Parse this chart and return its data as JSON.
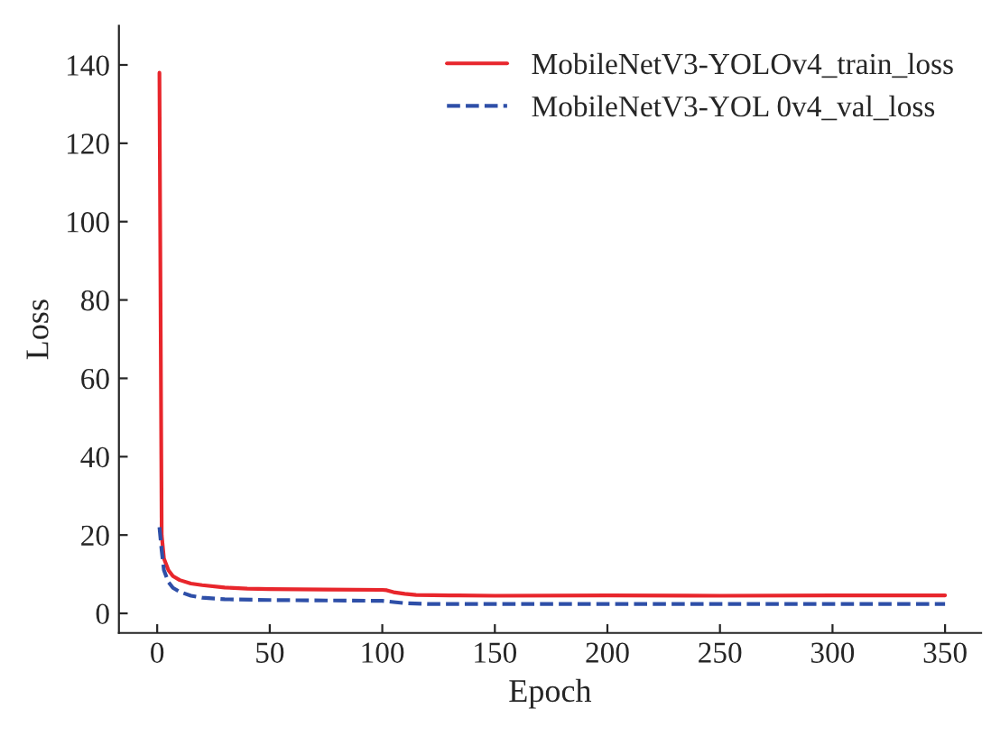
{
  "chart_data": {
    "type": "line",
    "xlabel": "Epoch",
    "ylabel": "Loss",
    "xlim": [
      -17,
      366
    ],
    "ylim": [
      -5,
      150
    ],
    "xticks": [
      0,
      50,
      100,
      150,
      200,
      250,
      300,
      350
    ],
    "yticks": [
      0,
      20,
      40,
      60,
      80,
      100,
      120,
      140
    ],
    "grid": false,
    "legend": "top right",
    "series": [
      {
        "name": "MobileNetV3-YOLOv4_train_loss",
        "color": "#e8262c",
        "line_style": "solid",
        "x": [
          1,
          2,
          3,
          5,
          7,
          10,
          15,
          20,
          30,
          40,
          50,
          75,
          100,
          102,
          105,
          110,
          115,
          130,
          150,
          200,
          250,
          300,
          350
        ],
        "values": [
          138,
          20,
          14,
          11,
          9.5,
          8.5,
          7.6,
          7.2,
          6.6,
          6.3,
          6.2,
          6.1,
          6.0,
          5.9,
          5.4,
          5.0,
          4.7,
          4.6,
          4.5,
          4.6,
          4.5,
          4.6,
          4.6
        ]
      },
      {
        "name": "MobileNetV3-YOL 0v4_val_loss",
        "color": "#2e4fa8",
        "line_style": "dashed",
        "x": [
          1,
          2,
          3,
          5,
          7,
          10,
          15,
          20,
          30,
          50,
          75,
          100,
          105,
          110,
          120,
          150,
          200,
          250,
          300,
          350
        ],
        "values": [
          22,
          16,
          11,
          8,
          6.5,
          5.5,
          4.5,
          4.0,
          3.6,
          3.4,
          3.3,
          3.2,
          2.9,
          2.6,
          2.4,
          2.4,
          2.4,
          2.4,
          2.4,
          2.4
        ]
      }
    ]
  }
}
